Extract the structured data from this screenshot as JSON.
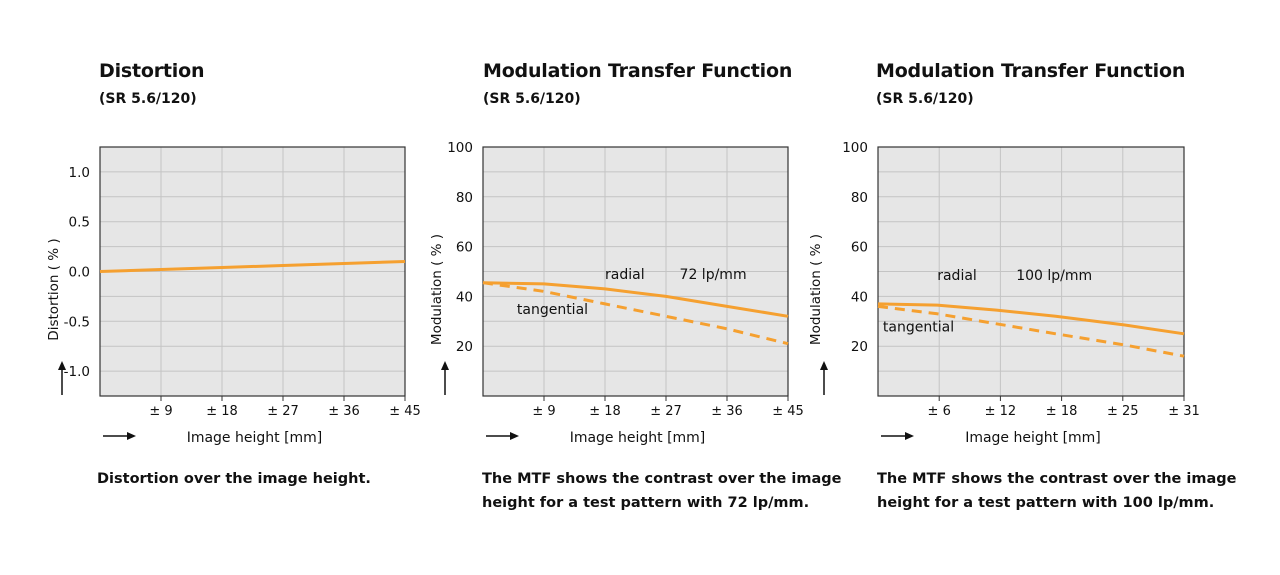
{
  "colors": {
    "plot_bg": "#e6e6e6",
    "grid": "#c4c4c4",
    "frame": "#333333",
    "curve": "#f5a030",
    "text": "#111111"
  },
  "chart_data": [
    {
      "type": "line",
      "title": "Distortion",
      "subtitle": "(SR 5.6/120)",
      "ylabel": "Distortion ( % )",
      "xlabel": "Image height [mm]",
      "xlim": [
        0,
        45
      ],
      "ylim": [
        -1.25,
        1.25
      ],
      "x_ticks": [
        9,
        18,
        27,
        36,
        45
      ],
      "x_tick_labels": [
        "± 9",
        "± 18",
        "± 27",
        "± 36",
        "± 45"
      ],
      "y_ticks": [
        1.0,
        0.5,
        0.0,
        -0.5,
        -1.0
      ],
      "y_tick_labels": [
        "1.0",
        "0.5",
        "0.0",
        "-0.5",
        "-1.0"
      ],
      "series": [
        {
          "name": "distortion",
          "style": "solid",
          "x": [
            0,
            9,
            18,
            27,
            36,
            45
          ],
          "y": [
            0.0,
            0.02,
            0.04,
            0.06,
            0.08,
            0.1
          ]
        }
      ],
      "annotations": [],
      "caption": "Distortion over the image height."
    },
    {
      "type": "line",
      "title": "Modulation Transfer Function",
      "subtitle": "(SR 5.6/120)",
      "ylabel": "Modulation ( % )",
      "xlabel": "Image height [mm]",
      "xlim": [
        0,
        45
      ],
      "ylim": [
        0,
        100
      ],
      "x_ticks": [
        9,
        18,
        27,
        36,
        45
      ],
      "x_tick_labels": [
        "± 9",
        "± 18",
        "± 27",
        "± 36",
        "± 45"
      ],
      "y_ticks": [
        100,
        80,
        60,
        40,
        20
      ],
      "y_tick_labels": [
        "100",
        "80",
        "60",
        "40",
        "20"
      ],
      "series": [
        {
          "name": "radial",
          "style": "solid",
          "x": [
            0,
            9,
            18,
            27,
            36,
            45
          ],
          "y": [
            45.5,
            45,
            43,
            40,
            36,
            32
          ]
        },
        {
          "name": "tangential",
          "style": "dashed",
          "x": [
            0,
            9,
            18,
            27,
            36,
            45
          ],
          "y": [
            45.5,
            42,
            37,
            32,
            27,
            21
          ]
        }
      ],
      "annotations": [
        {
          "text": "radial",
          "x": 18,
          "y": 47
        },
        {
          "text": "72 lp/mm",
          "x": 29,
          "y": 47
        },
        {
          "text": "tangential",
          "x": 5,
          "y": 33
        }
      ],
      "caption": "The MTF shows the contrast over the image height for a test pattern with 72 lp/mm."
    },
    {
      "type": "line",
      "title": "Modulation Transfer Function",
      "subtitle": "(SR 5.6/120)",
      "ylabel": "Modulation ( % )",
      "xlabel": "Image height [mm]",
      "xlim": [
        0,
        31
      ],
      "ylim": [
        0,
        100
      ],
      "x_ticks": [
        6,
        12,
        18,
        25,
        31
      ],
      "x_tick_labels": [
        "± 6",
        "± 12",
        "± 18",
        "± 25",
        "± 31"
      ],
      "x_tick_positions": [
        6.2,
        12.4,
        18.6,
        24.8,
        31
      ],
      "y_ticks": [
        100,
        80,
        60,
        40,
        20
      ],
      "y_tick_labels": [
        "100",
        "80",
        "60",
        "40",
        "20"
      ],
      "series": [
        {
          "name": "radial",
          "style": "solid",
          "x": [
            0,
            6,
            12,
            18,
            25,
            31
          ],
          "y": [
            37,
            36.5,
            34.5,
            32,
            28.5,
            25
          ]
        },
        {
          "name": "tangential",
          "style": "dashed",
          "x": [
            0,
            6,
            12,
            18,
            25,
            31
          ],
          "y": [
            36,
            33,
            29,
            25,
            20.5,
            16
          ]
        }
      ],
      "annotations": [
        {
          "text": "radial",
          "x": 6,
          "y": 46.5
        },
        {
          "text": "100 lp/mm",
          "x": 14,
          "y": 46.5
        },
        {
          "text": "tangential",
          "x": 0.5,
          "y": 26
        }
      ],
      "caption": "The MTF shows the contrast over the image height for a test pattern with 100 lp/mm."
    }
  ]
}
